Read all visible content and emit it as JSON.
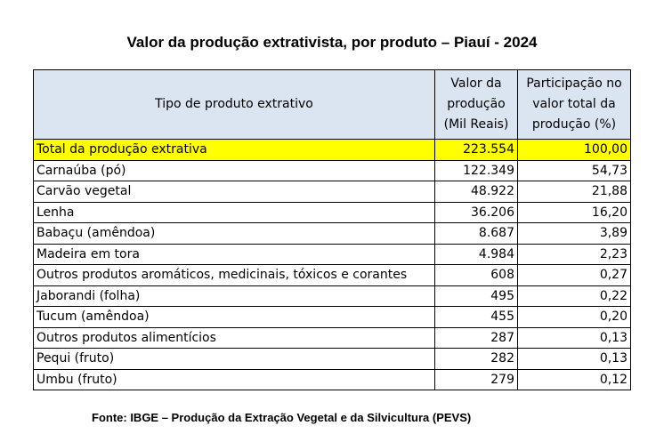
{
  "title": "Valor da produção extrativista, por produto – Piauí - 2024",
  "table": {
    "headers": {
      "product": "Tipo de produto extrativo",
      "value_lines": [
        "Valor da",
        "produção",
        "(Mil Reais)"
      ],
      "share_lines": [
        "Participação no",
        "valor total da",
        "produção (%)"
      ]
    },
    "total": {
      "label": "Total da produção extrativa",
      "value": "223.554",
      "share": "100,00"
    },
    "rows": [
      {
        "label": "Carnaúba (pó)",
        "value": "122.349",
        "share": "54,73"
      },
      {
        "label": "Carvão vegetal",
        "value": "48.922",
        "share": "21,88"
      },
      {
        "label": "Lenha",
        "value": "36.206",
        "share": "16,20"
      },
      {
        "label": "Babaçu (amêndoa)",
        "value": "8.687",
        "share": "3,89"
      },
      {
        "label": "Madeira em tora",
        "value": "4.984",
        "share": "2,23"
      },
      {
        "label": "Outros produtos aromáticos, medicinais, tóxicos e corantes",
        "value": "608",
        "share": "0,27"
      },
      {
        "label": "Jaborandi (folha)",
        "value": "495",
        "share": "0,22"
      },
      {
        "label": "Tucum (amêndoa)",
        "value": "455",
        "share": "0,20"
      },
      {
        "label": "Outros produtos alimentícios",
        "value": "287",
        "share": "0,13"
      },
      {
        "label": "Pequi (fruto)",
        "value": "282",
        "share": "0,13"
      },
      {
        "label": "Umbu (fruto)",
        "value": "279",
        "share": "0,12"
      }
    ]
  },
  "footer": "Fonte: IBGE – Produção da Extração Vegetal e da Silvicultura (PEVS)",
  "colors": {
    "header_bg": "#dbe5f1",
    "total_bg": "#ffff00"
  }
}
